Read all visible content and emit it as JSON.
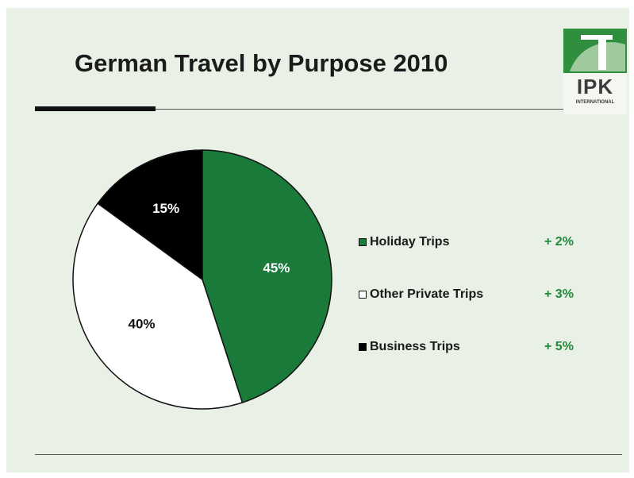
{
  "title": "German Travel by Purpose 2010",
  "logo": {
    "text": "IPK",
    "subtitle": "INTERNATIONAL"
  },
  "colors": {
    "green": "#1a7a3a",
    "white": "#ffffff",
    "black": "#000000",
    "change": "#1f8a3a"
  },
  "chart_data": {
    "type": "pie",
    "slices": [
      {
        "name": "Holiday Trips",
        "value": 45,
        "label": "45%",
        "color": "#1a7a3a",
        "label_color": "#ffffff",
        "change": "+ 2%"
      },
      {
        "name": "Other Private Trips",
        "value": 40,
        "label": "40%",
        "color": "#ffffff",
        "label_color": "#111111",
        "change": "+ 3%"
      },
      {
        "name": "Business Trips",
        "value": 15,
        "label": "15%",
        "color": "#000000",
        "label_color": "#ffffff",
        "change": "+ 5%"
      }
    ],
    "legend": "right"
  }
}
